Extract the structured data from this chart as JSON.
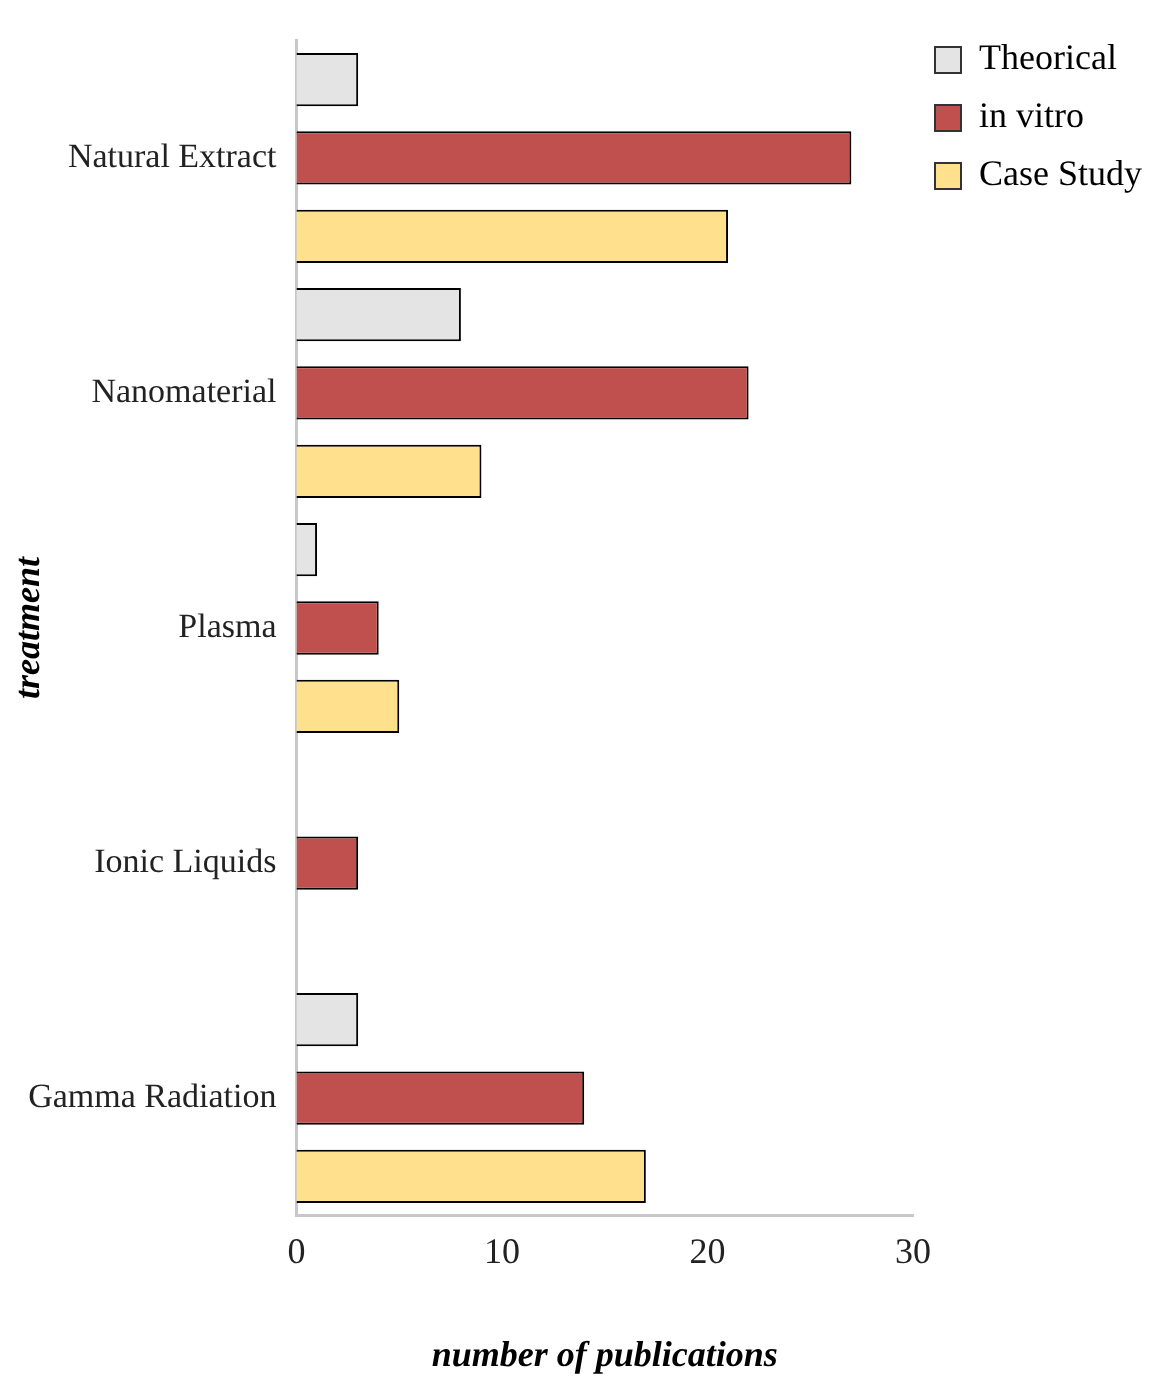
{
  "chart_data": {
    "type": "bar",
    "orientation": "horizontal",
    "xlabel": "number of publications",
    "ylabel": "treatment",
    "categories": [
      "Natural Extract",
      "Nanomaterial",
      "Plasma",
      "Ionic Liquids",
      "Gamma Radiation"
    ],
    "series": [
      {
        "name": "Theorical",
        "color": "#e4e4e4",
        "values": [
          3,
          8,
          1,
          0,
          3
        ]
      },
      {
        "name": "in vitro",
        "color": "#c0504d",
        "values": [
          27,
          22,
          4,
          3,
          14
        ]
      },
      {
        "name": "Case Study",
        "color": "#ffe08c",
        "values": [
          21,
          9,
          5,
          0,
          17
        ]
      }
    ],
    "xlim": [
      0,
      30
    ],
    "xticks": [
      0,
      10,
      20,
      30
    ],
    "grid": false,
    "legend": "top right"
  }
}
